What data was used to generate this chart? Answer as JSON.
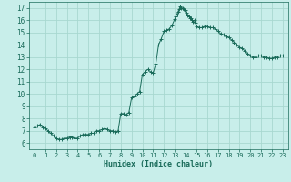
{
  "title": "",
  "xlabel": "Humidex (Indice chaleur)",
  "ylabel": "",
  "xlim": [
    -0.5,
    23.5
  ],
  "ylim": [
    5.5,
    17.5
  ],
  "yticks": [
    6,
    7,
    8,
    9,
    10,
    11,
    12,
    13,
    14,
    15,
    16,
    17
  ],
  "xticks": [
    0,
    1,
    2,
    3,
    4,
    5,
    6,
    7,
    8,
    9,
    10,
    11,
    12,
    13,
    14,
    15,
    16,
    17,
    18,
    19,
    20,
    21,
    22,
    23
  ],
  "bg_color": "#c8eeea",
  "grid_color": "#a8d8d0",
  "line_color": "#1a6b5a",
  "x": [
    0,
    0.25,
    0.5,
    0.75,
    1.0,
    1.25,
    1.5,
    1.75,
    2.0,
    2.25,
    2.5,
    2.75,
    3.0,
    3.25,
    3.5,
    3.75,
    4.0,
    4.25,
    4.5,
    4.75,
    5.0,
    5.25,
    5.5,
    5.75,
    6.0,
    6.25,
    6.5,
    6.75,
    7.0,
    7.25,
    7.5,
    7.75,
    8.0,
    8.25,
    8.5,
    8.75,
    9.0,
    9.25,
    9.5,
    9.75,
    10.0,
    10.25,
    10.5,
    10.75,
    11.0,
    11.25,
    11.5,
    11.75,
    12.0,
    12.25,
    12.5,
    12.75,
    13.0,
    13.1,
    13.2,
    13.3,
    13.4,
    13.5,
    13.6,
    13.7,
    13.8,
    13.9,
    14.0,
    14.1,
    14.2,
    14.3,
    14.4,
    14.5,
    14.6,
    14.7,
    14.8,
    14.9,
    15.0,
    15.25,
    15.5,
    15.75,
    16.0,
    16.25,
    16.5,
    16.75,
    17.0,
    17.25,
    17.5,
    17.75,
    18.0,
    18.25,
    18.5,
    18.75,
    19.0,
    19.25,
    19.5,
    19.75,
    20.0,
    20.25,
    20.5,
    20.75,
    21.0,
    21.25,
    21.5,
    21.75,
    22.0,
    22.25,
    22.5,
    22.75,
    23.0
  ],
  "y": [
    7.3,
    7.4,
    7.5,
    7.3,
    7.2,
    7.0,
    6.8,
    6.6,
    6.4,
    6.3,
    6.3,
    6.4,
    6.4,
    6.5,
    6.5,
    6.4,
    6.4,
    6.6,
    6.7,
    6.7,
    6.7,
    6.8,
    6.8,
    7.0,
    7.0,
    7.1,
    7.2,
    7.1,
    7.0,
    7.0,
    6.9,
    7.0,
    8.4,
    8.4,
    8.3,
    8.5,
    9.7,
    9.8,
    10.0,
    10.2,
    11.6,
    11.8,
    12.0,
    11.8,
    11.7,
    12.5,
    14.0,
    14.5,
    15.1,
    15.2,
    15.3,
    15.6,
    16.1,
    16.3,
    16.5,
    16.7,
    16.9,
    17.1,
    17.0,
    17.0,
    16.9,
    16.8,
    16.8,
    16.6,
    16.4,
    16.3,
    16.2,
    16.2,
    16.0,
    15.9,
    16.0,
    15.8,
    15.5,
    15.4,
    15.4,
    15.5,
    15.5,
    15.4,
    15.4,
    15.3,
    15.1,
    14.9,
    14.8,
    14.7,
    14.6,
    14.4,
    14.2,
    14.0,
    13.8,
    13.7,
    13.5,
    13.3,
    13.1,
    13.0,
    13.0,
    13.1,
    13.1,
    13.0,
    13.0,
    12.9,
    12.9,
    13.0,
    13.0,
    13.1,
    13.1
  ]
}
